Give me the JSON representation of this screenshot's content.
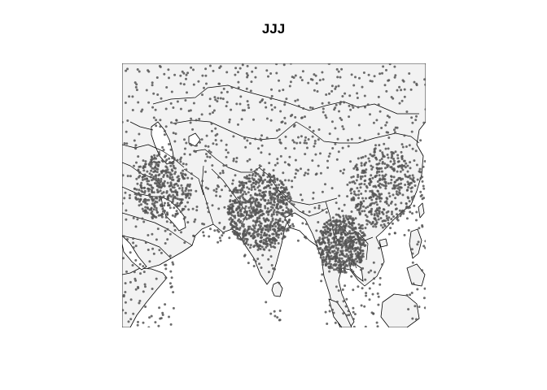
{
  "title": "JJJ",
  "point_color": "#555555",
  "land_color": "#f2f2f2",
  "border_color": "#000000",
  "background_color": "#ffffff"
}
